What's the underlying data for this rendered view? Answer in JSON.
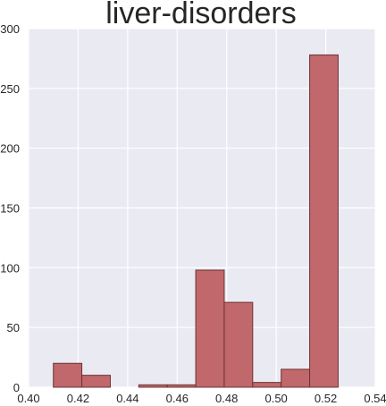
{
  "chart_data": {
    "type": "bar",
    "title": "liver-disorders",
    "xlim": [
      0.4,
      0.54
    ],
    "ylim": [
      0,
      300
    ],
    "x_ticks": [
      "0.40",
      "0.42",
      "0.44",
      "0.46",
      "0.48",
      "0.50",
      "0.52",
      "0.54"
    ],
    "y_ticks": [
      "0",
      "50",
      "100",
      "150",
      "200",
      "250",
      "300"
    ],
    "grid": true,
    "bins": [
      {
        "x0": 0.41,
        "x1": 0.4215,
        "value": 20
      },
      {
        "x0": 0.4215,
        "x1": 0.433,
        "value": 10
      },
      {
        "x0": 0.433,
        "x1": 0.4445,
        "value": 0
      },
      {
        "x0": 0.4445,
        "x1": 0.456,
        "value": 2
      },
      {
        "x0": 0.456,
        "x1": 0.4675,
        "value": 2
      },
      {
        "x0": 0.4675,
        "x1": 0.479,
        "value": 98
      },
      {
        "x0": 0.479,
        "x1": 0.4905,
        "value": 71
      },
      {
        "x0": 0.4905,
        "x1": 0.502,
        "value": 4
      },
      {
        "x0": 0.502,
        "x1": 0.5135,
        "value": 15
      },
      {
        "x0": 0.5135,
        "x1": 0.525,
        "value": 278
      }
    ],
    "colors": {
      "bar_fill": "#c0686b",
      "bar_edge": "#6e3335",
      "plot_background": "#eaeaf2",
      "grid": "#ffffff"
    }
  }
}
